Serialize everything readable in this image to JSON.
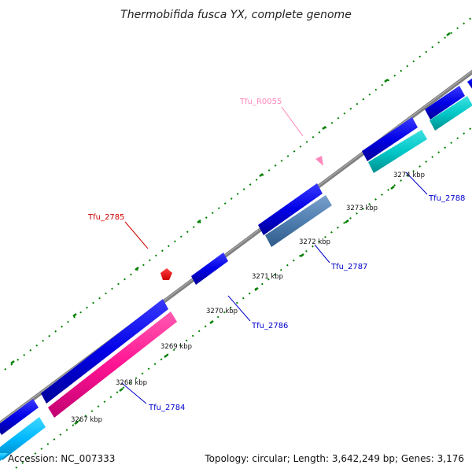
{
  "title": "Thermobifida fusca YX, complete genome",
  "footer": {
    "accession": "Accession: NC_007333",
    "summary": "Topology: circular; Length: 3,642,249 bp; Genes: 3,176"
  },
  "colors": {
    "backbone": "#808080",
    "forward_cds": "#0000e6",
    "reverse_cds": "#00c8c8",
    "reverse_cds_alt": "#00b8ff",
    "rrna_like": "#ff1493",
    "ruler_ticks": "#008000",
    "tfu_2785_label": "#cc0000",
    "tfu_r0055_label": "#ff88bb",
    "gene_label": "#0000cc"
  },
  "ruler_labels": [
    "3267 kbp",
    "3268 kbp",
    "3269 kbp",
    "3270 kbp",
    "3271 kbp",
    "3272 kbp",
    "3273 kbp",
    "3274 kbp"
  ],
  "gene_labels": [
    {
      "name": "Tfu_2784",
      "color": "#0000cc"
    },
    {
      "name": "Tfu_2785",
      "color": "#cc0000"
    },
    {
      "name": "Tfu_2786",
      "color": "#0000cc"
    },
    {
      "name": "Tfu_2787",
      "color": "#0000cc"
    },
    {
      "name": "Tfu_2788",
      "color": "#0000cc"
    },
    {
      "name": "Tfu_R0055",
      "color": "#ff88bb"
    }
  ]
}
